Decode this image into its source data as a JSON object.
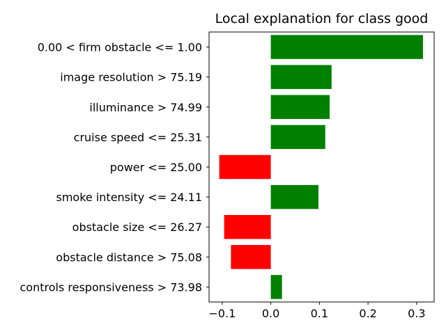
{
  "chart_data": {
    "type": "bar",
    "orientation": "horizontal",
    "title": "Local explanation for class good",
    "xlabel": "",
    "ylabel": "",
    "categories": [
      "0.00 < firm obstacle <= 1.00",
      "image resolution > 75.19",
      "illuminance > 74.99",
      "cruise speed <= 25.31",
      "power <= 25.00",
      "smoke intensity <= 24.11",
      "obstacle size <= 26.27",
      "obstacle distance > 75.08",
      "controls responsiveness > 73.98"
    ],
    "values": [
      0.313,
      0.125,
      0.121,
      0.112,
      -0.106,
      0.098,
      -0.096,
      -0.082,
      0.023
    ],
    "xlim": [
      -0.127,
      0.336
    ],
    "xticks": [
      -0.1,
      0.0,
      0.1,
      0.2,
      0.3
    ],
    "xtick_labels": [
      "−0.1",
      "0.0",
      "0.1",
      "0.2",
      "0.3"
    ],
    "grid": false,
    "colors": {
      "positive": "#008000",
      "negative": "#ff0000",
      "axis": "#000000"
    }
  }
}
